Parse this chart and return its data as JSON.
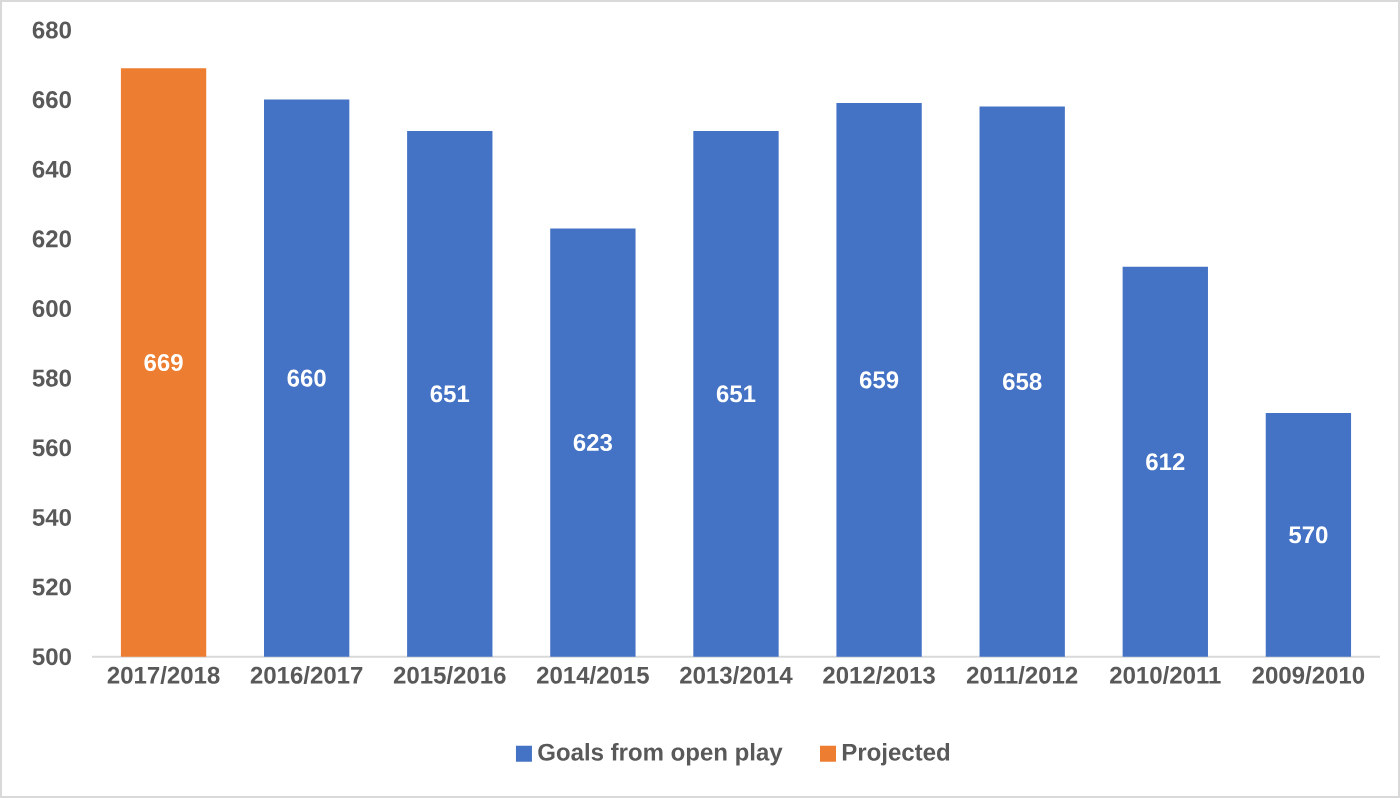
{
  "chart_data": {
    "type": "bar",
    "categories": [
      "2017/2018",
      "2016/2017",
      "2015/2016",
      "2014/2015",
      "2013/2014",
      "2012/2013",
      "2011/2012",
      "2010/2011",
      "2009/2010"
    ],
    "series": [
      {
        "name": "Goals from open play",
        "color": "#4472c4",
        "values": [
          null,
          660,
          651,
          623,
          651,
          659,
          658,
          612,
          570
        ]
      },
      {
        "name": "Projected",
        "color": "#ed7d31",
        "values": [
          669,
          null,
          null,
          null,
          null,
          null,
          null,
          null,
          null
        ]
      }
    ],
    "ylim": [
      500,
      680
    ],
    "yticks": [
      500,
      520,
      540,
      560,
      580,
      600,
      620,
      640,
      660,
      680
    ],
    "legend": "bottom",
    "data_labels": true
  }
}
